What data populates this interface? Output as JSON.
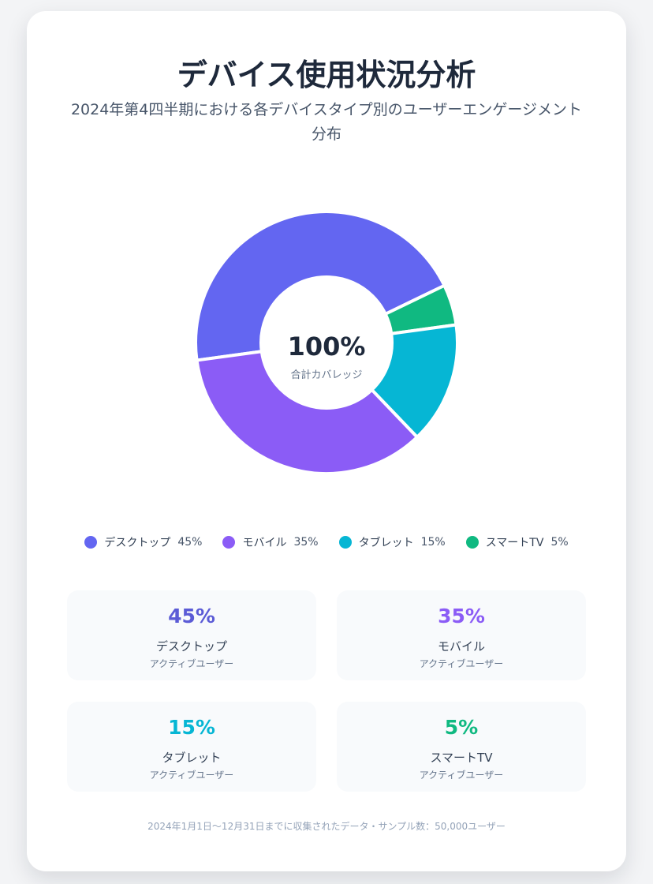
{
  "page": {
    "title": "デバイス使用状況分析",
    "subtitle": "2024年第4四半期における各デバイスタイプ別のユーザーエンゲージメント分布",
    "footnote": "2024年1月1日～12月31日までに収集されたデータ・サンプル数：50,000ユーザー"
  },
  "center": {
    "value": "100%",
    "label": "合計カバレッジ"
  },
  "legend": [
    {
      "label": "デスクトップ",
      "value": "45%",
      "color": "#6366f1"
    },
    {
      "label": "モバイル",
      "value": "35%",
      "color": "#8b5cf6"
    },
    {
      "label": "タブレット",
      "value": "15%",
      "color": "#06b6d4"
    },
    {
      "label": "スマートTV",
      "value": "5%",
      "color": "#10b981"
    }
  ],
  "stats": [
    {
      "value": "45%",
      "label": "デスクトップ",
      "sub": "アクティブユーザー",
      "color": "#5b5bd6"
    },
    {
      "value": "35%",
      "label": "モバイル",
      "sub": "アクティブユーザー",
      "color": "#8b5cf6"
    },
    {
      "value": "15%",
      "label": "タブレット",
      "sub": "アクティブユーザー",
      "color": "#06b6d4"
    },
    {
      "value": "5%",
      "label": "スマートTV",
      "sub": "アクティブユーザー",
      "color": "#10b981"
    }
  ],
  "chart_data": {
    "type": "pie",
    "title": "デバイス使用状況分析",
    "categories": [
      "デスクトップ",
      "モバイル",
      "タブレット",
      "スマートTV"
    ],
    "values": [
      45,
      35,
      15,
      5
    ],
    "colors": [
      "#6366f1",
      "#8b5cf6",
      "#06b6d4",
      "#10b981"
    ],
    "donut": true,
    "center_text": "100%",
    "legend_position": "bottom"
  }
}
